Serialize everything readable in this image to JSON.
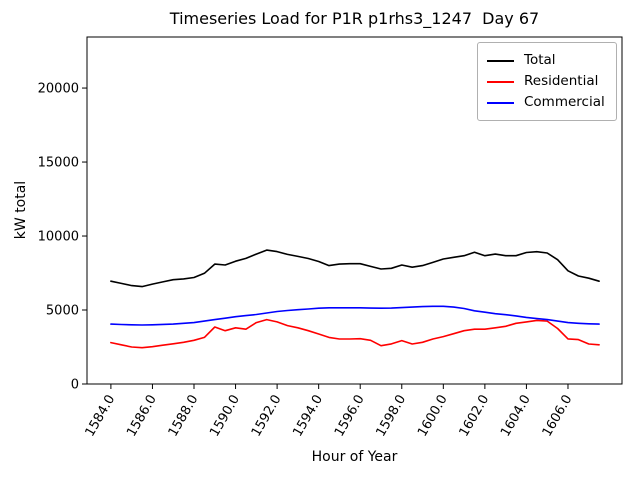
{
  "chart_data": {
    "type": "line",
    "title": "Timeseries Load for P1R p1rhs3_1247  Day 67",
    "xlabel": "Hour of Year",
    "ylabel": "kW total",
    "xlim": [
      1582.85,
      1608.6
    ],
    "ylim": [
      0,
      23450
    ],
    "grid": false,
    "legend_position": "upper right",
    "x_ticks": [
      1584.0,
      1586.0,
      1588.0,
      1590.0,
      1592.0,
      1594.0,
      1596.0,
      1598.0,
      1600.0,
      1602.0,
      1604.0,
      1606.0
    ],
    "x_tick_labels": [
      "1584.0",
      "1586.0",
      "1588.0",
      "1590.0",
      "1592.0",
      "1594.0",
      "1596.0",
      "1598.0",
      "1600.0",
      "1602.0",
      "1604.0",
      "1606.0"
    ],
    "x_tick_rotation_deg": 60,
    "y_ticks": [
      0,
      5000,
      10000,
      15000,
      20000
    ],
    "y_tick_labels": [
      "0",
      "5000",
      "10000",
      "15000",
      "20000"
    ],
    "x": [
      1584.0,
      1584.5,
      1585.0,
      1585.5,
      1586.0,
      1586.5,
      1587.0,
      1587.5,
      1588.0,
      1588.5,
      1589.0,
      1589.5,
      1590.0,
      1590.5,
      1591.0,
      1591.5,
      1592.0,
      1592.5,
      1593.0,
      1593.5,
      1594.0,
      1594.5,
      1595.0,
      1595.5,
      1596.0,
      1596.5,
      1597.0,
      1597.5,
      1598.0,
      1598.5,
      1599.0,
      1599.5,
      1600.0,
      1600.5,
      1601.0,
      1601.5,
      1602.0,
      1602.5,
      1603.0,
      1603.5,
      1604.0,
      1604.5,
      1605.0,
      1605.5,
      1606.0,
      1606.5,
      1607.0,
      1607.5
    ],
    "series": [
      {
        "name": "Total",
        "color": "#000000",
        "values": [
          6950,
          6800,
          6650,
          6580,
          6750,
          6900,
          7050,
          7100,
          7200,
          7480,
          8100,
          8040,
          8300,
          8490,
          8780,
          9050,
          8950,
          8760,
          8620,
          8480,
          8280,
          8000,
          8100,
          8130,
          8130,
          7950,
          7770,
          7820,
          8040,
          7890,
          8000,
          8220,
          8450,
          8560,
          8670,
          8900,
          8670,
          8780,
          8670,
          8670,
          8890,
          8940,
          8850,
          8400,
          7650,
          7300,
          7150,
          6950
        ]
      },
      {
        "name": "Residential",
        "color": "#ff0000",
        "values": [
          2800,
          2650,
          2500,
          2450,
          2520,
          2620,
          2720,
          2820,
          2950,
          3150,
          3850,
          3600,
          3800,
          3700,
          4150,
          4350,
          4200,
          3950,
          3800,
          3600,
          3380,
          3150,
          3040,
          3040,
          3060,
          2950,
          2590,
          2710,
          2930,
          2700,
          2820,
          3040,
          3200,
          3400,
          3600,
          3700,
          3700,
          3800,
          3900,
          4100,
          4200,
          4300,
          4250,
          3750,
          3050,
          3000,
          2700,
          2650
        ]
      },
      {
        "name": "Commercial",
        "color": "#0000ff",
        "values": [
          4050,
          4020,
          4000,
          3990,
          4000,
          4030,
          4050,
          4100,
          4150,
          4250,
          4350,
          4450,
          4550,
          4620,
          4700,
          4800,
          4900,
          4970,
          5020,
          5070,
          5120,
          5150,
          5150,
          5150,
          5150,
          5130,
          5120,
          5130,
          5160,
          5200,
          5230,
          5250,
          5250,
          5200,
          5100,
          4950,
          4850,
          4750,
          4680,
          4600,
          4500,
          4420,
          4350,
          4250,
          4150,
          4100,
          4070,
          4050
        ]
      }
    ]
  }
}
